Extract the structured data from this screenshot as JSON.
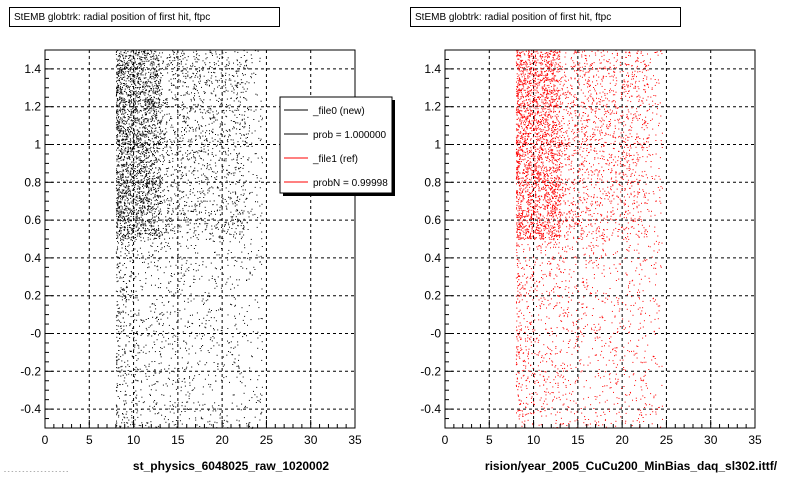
{
  "chart_data": [
    {
      "type": "scatter",
      "title": "StEMB globtrk: radial position of first hit, ftpc",
      "xlabel": "st_physics_6048025_raw_1020002",
      "xlim": [
        0,
        35
      ],
      "ylim": [
        -0.5,
        1.5
      ],
      "x_ticks": [
        "0",
        "5",
        "10",
        "15",
        "20",
        "25",
        "30",
        "35"
      ],
      "y_ticks": [
        "-0.4",
        "-0.2",
        "-0",
        "0.2",
        "0.4",
        "0.6",
        "0.8",
        "1",
        "1.2",
        "1.4"
      ],
      "grid": true,
      "legend_position": "top-right",
      "legend": [
        {
          "label": "_file0 (new)",
          "color": "#000000"
        },
        {
          "label": "prob = 1.000000",
          "color": "#000000"
        },
        {
          "label": "_file1 (ref)",
          "color": "#ff0000"
        },
        {
          "label": "probN = 0.99998",
          "color": "#ff0000"
        }
      ],
      "series": [
        {
          "color": "#000000",
          "x_range": [
            7.5,
            24
          ],
          "y_range": [
            -0.5,
            1.5
          ],
          "dense_band_y": [
            0.5,
            1.5
          ],
          "dense_x": [
            8,
            13
          ]
        }
      ]
    },
    {
      "type": "scatter",
      "title": "StEMB globtrk: radial position of first hit, ftpc",
      "xlabel": "rision/year_2005_CuCu200_MinBias_daq_sl302.ittf/",
      "xlim": [
        0,
        35
      ],
      "ylim": [
        -0.5,
        1.5
      ],
      "x_ticks": [
        "0",
        "5",
        "10",
        "15",
        "20",
        "25",
        "30",
        "35"
      ],
      "y_ticks": [
        "-0.4",
        "-0.2",
        "-0",
        "0.2",
        "0.4",
        "0.6",
        "0.8",
        "1",
        "1.2",
        "1.4"
      ],
      "grid": true,
      "series": [
        {
          "color": "#ff0000",
          "x_range": [
            7.5,
            24
          ],
          "y_range": [
            -0.5,
            1.5
          ],
          "dense_band_y": [
            0.5,
            1.5
          ],
          "dense_x": [
            8,
            13
          ]
        }
      ]
    }
  ],
  "footer": "- - - -  - - -  - - - - - - -  - - - -"
}
